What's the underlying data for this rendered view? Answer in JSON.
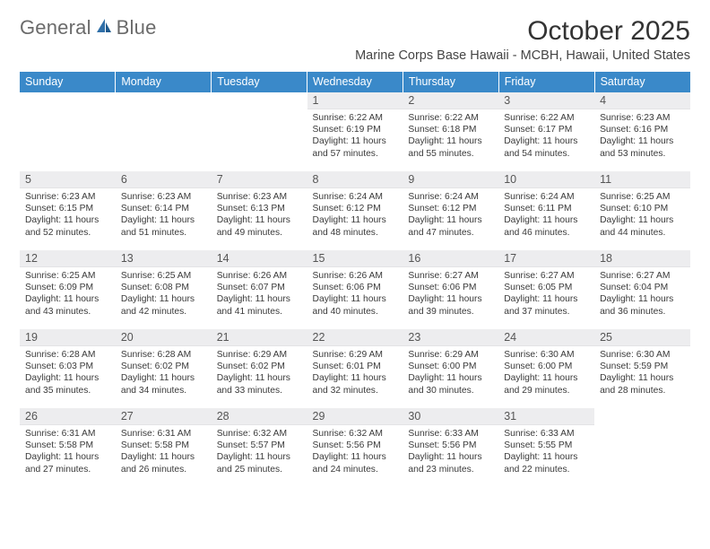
{
  "logo": {
    "text1": "General",
    "text2": "Blue"
  },
  "title": "October 2025",
  "location": "Marine Corps Base Hawaii - MCBH, Hawaii, United States",
  "day_headers": [
    "Sunday",
    "Monday",
    "Tuesday",
    "Wednesday",
    "Thursday",
    "Friday",
    "Saturday"
  ],
  "colors": {
    "header_bg": "#3a89c9",
    "header_fg": "#ffffff",
    "daynum_bg": "#ededef",
    "logo_gray": "#6b6b6b",
    "logo_blue": "#2f6fa8"
  },
  "weeks": [
    [
      {
        "day": "",
        "sunrise": "",
        "sunset": "",
        "daylight": ""
      },
      {
        "day": "",
        "sunrise": "",
        "sunset": "",
        "daylight": ""
      },
      {
        "day": "",
        "sunrise": "",
        "sunset": "",
        "daylight": ""
      },
      {
        "day": "1",
        "sunrise": "Sunrise: 6:22 AM",
        "sunset": "Sunset: 6:19 PM",
        "daylight": "Daylight: 11 hours and 57 minutes."
      },
      {
        "day": "2",
        "sunrise": "Sunrise: 6:22 AM",
        "sunset": "Sunset: 6:18 PM",
        "daylight": "Daylight: 11 hours and 55 minutes."
      },
      {
        "day": "3",
        "sunrise": "Sunrise: 6:22 AM",
        "sunset": "Sunset: 6:17 PM",
        "daylight": "Daylight: 11 hours and 54 minutes."
      },
      {
        "day": "4",
        "sunrise": "Sunrise: 6:23 AM",
        "sunset": "Sunset: 6:16 PM",
        "daylight": "Daylight: 11 hours and 53 minutes."
      }
    ],
    [
      {
        "day": "5",
        "sunrise": "Sunrise: 6:23 AM",
        "sunset": "Sunset: 6:15 PM",
        "daylight": "Daylight: 11 hours and 52 minutes."
      },
      {
        "day": "6",
        "sunrise": "Sunrise: 6:23 AM",
        "sunset": "Sunset: 6:14 PM",
        "daylight": "Daylight: 11 hours and 51 minutes."
      },
      {
        "day": "7",
        "sunrise": "Sunrise: 6:23 AM",
        "sunset": "Sunset: 6:13 PM",
        "daylight": "Daylight: 11 hours and 49 minutes."
      },
      {
        "day": "8",
        "sunrise": "Sunrise: 6:24 AM",
        "sunset": "Sunset: 6:12 PM",
        "daylight": "Daylight: 11 hours and 48 minutes."
      },
      {
        "day": "9",
        "sunrise": "Sunrise: 6:24 AM",
        "sunset": "Sunset: 6:12 PM",
        "daylight": "Daylight: 11 hours and 47 minutes."
      },
      {
        "day": "10",
        "sunrise": "Sunrise: 6:24 AM",
        "sunset": "Sunset: 6:11 PM",
        "daylight": "Daylight: 11 hours and 46 minutes."
      },
      {
        "day": "11",
        "sunrise": "Sunrise: 6:25 AM",
        "sunset": "Sunset: 6:10 PM",
        "daylight": "Daylight: 11 hours and 44 minutes."
      }
    ],
    [
      {
        "day": "12",
        "sunrise": "Sunrise: 6:25 AM",
        "sunset": "Sunset: 6:09 PM",
        "daylight": "Daylight: 11 hours and 43 minutes."
      },
      {
        "day": "13",
        "sunrise": "Sunrise: 6:25 AM",
        "sunset": "Sunset: 6:08 PM",
        "daylight": "Daylight: 11 hours and 42 minutes."
      },
      {
        "day": "14",
        "sunrise": "Sunrise: 6:26 AM",
        "sunset": "Sunset: 6:07 PM",
        "daylight": "Daylight: 11 hours and 41 minutes."
      },
      {
        "day": "15",
        "sunrise": "Sunrise: 6:26 AM",
        "sunset": "Sunset: 6:06 PM",
        "daylight": "Daylight: 11 hours and 40 minutes."
      },
      {
        "day": "16",
        "sunrise": "Sunrise: 6:27 AM",
        "sunset": "Sunset: 6:06 PM",
        "daylight": "Daylight: 11 hours and 39 minutes."
      },
      {
        "day": "17",
        "sunrise": "Sunrise: 6:27 AM",
        "sunset": "Sunset: 6:05 PM",
        "daylight": "Daylight: 11 hours and 37 minutes."
      },
      {
        "day": "18",
        "sunrise": "Sunrise: 6:27 AM",
        "sunset": "Sunset: 6:04 PM",
        "daylight": "Daylight: 11 hours and 36 minutes."
      }
    ],
    [
      {
        "day": "19",
        "sunrise": "Sunrise: 6:28 AM",
        "sunset": "Sunset: 6:03 PM",
        "daylight": "Daylight: 11 hours and 35 minutes."
      },
      {
        "day": "20",
        "sunrise": "Sunrise: 6:28 AM",
        "sunset": "Sunset: 6:02 PM",
        "daylight": "Daylight: 11 hours and 34 minutes."
      },
      {
        "day": "21",
        "sunrise": "Sunrise: 6:29 AM",
        "sunset": "Sunset: 6:02 PM",
        "daylight": "Daylight: 11 hours and 33 minutes."
      },
      {
        "day": "22",
        "sunrise": "Sunrise: 6:29 AM",
        "sunset": "Sunset: 6:01 PM",
        "daylight": "Daylight: 11 hours and 32 minutes."
      },
      {
        "day": "23",
        "sunrise": "Sunrise: 6:29 AM",
        "sunset": "Sunset: 6:00 PM",
        "daylight": "Daylight: 11 hours and 30 minutes."
      },
      {
        "day": "24",
        "sunrise": "Sunrise: 6:30 AM",
        "sunset": "Sunset: 6:00 PM",
        "daylight": "Daylight: 11 hours and 29 minutes."
      },
      {
        "day": "25",
        "sunrise": "Sunrise: 6:30 AM",
        "sunset": "Sunset: 5:59 PM",
        "daylight": "Daylight: 11 hours and 28 minutes."
      }
    ],
    [
      {
        "day": "26",
        "sunrise": "Sunrise: 6:31 AM",
        "sunset": "Sunset: 5:58 PM",
        "daylight": "Daylight: 11 hours and 27 minutes."
      },
      {
        "day": "27",
        "sunrise": "Sunrise: 6:31 AM",
        "sunset": "Sunset: 5:58 PM",
        "daylight": "Daylight: 11 hours and 26 minutes."
      },
      {
        "day": "28",
        "sunrise": "Sunrise: 6:32 AM",
        "sunset": "Sunset: 5:57 PM",
        "daylight": "Daylight: 11 hours and 25 minutes."
      },
      {
        "day": "29",
        "sunrise": "Sunrise: 6:32 AM",
        "sunset": "Sunset: 5:56 PM",
        "daylight": "Daylight: 11 hours and 24 minutes."
      },
      {
        "day": "30",
        "sunrise": "Sunrise: 6:33 AM",
        "sunset": "Sunset: 5:56 PM",
        "daylight": "Daylight: 11 hours and 23 minutes."
      },
      {
        "day": "31",
        "sunrise": "Sunrise: 6:33 AM",
        "sunset": "Sunset: 5:55 PM",
        "daylight": "Daylight: 11 hours and 22 minutes."
      },
      {
        "day": "",
        "sunrise": "",
        "sunset": "",
        "daylight": ""
      }
    ]
  ]
}
